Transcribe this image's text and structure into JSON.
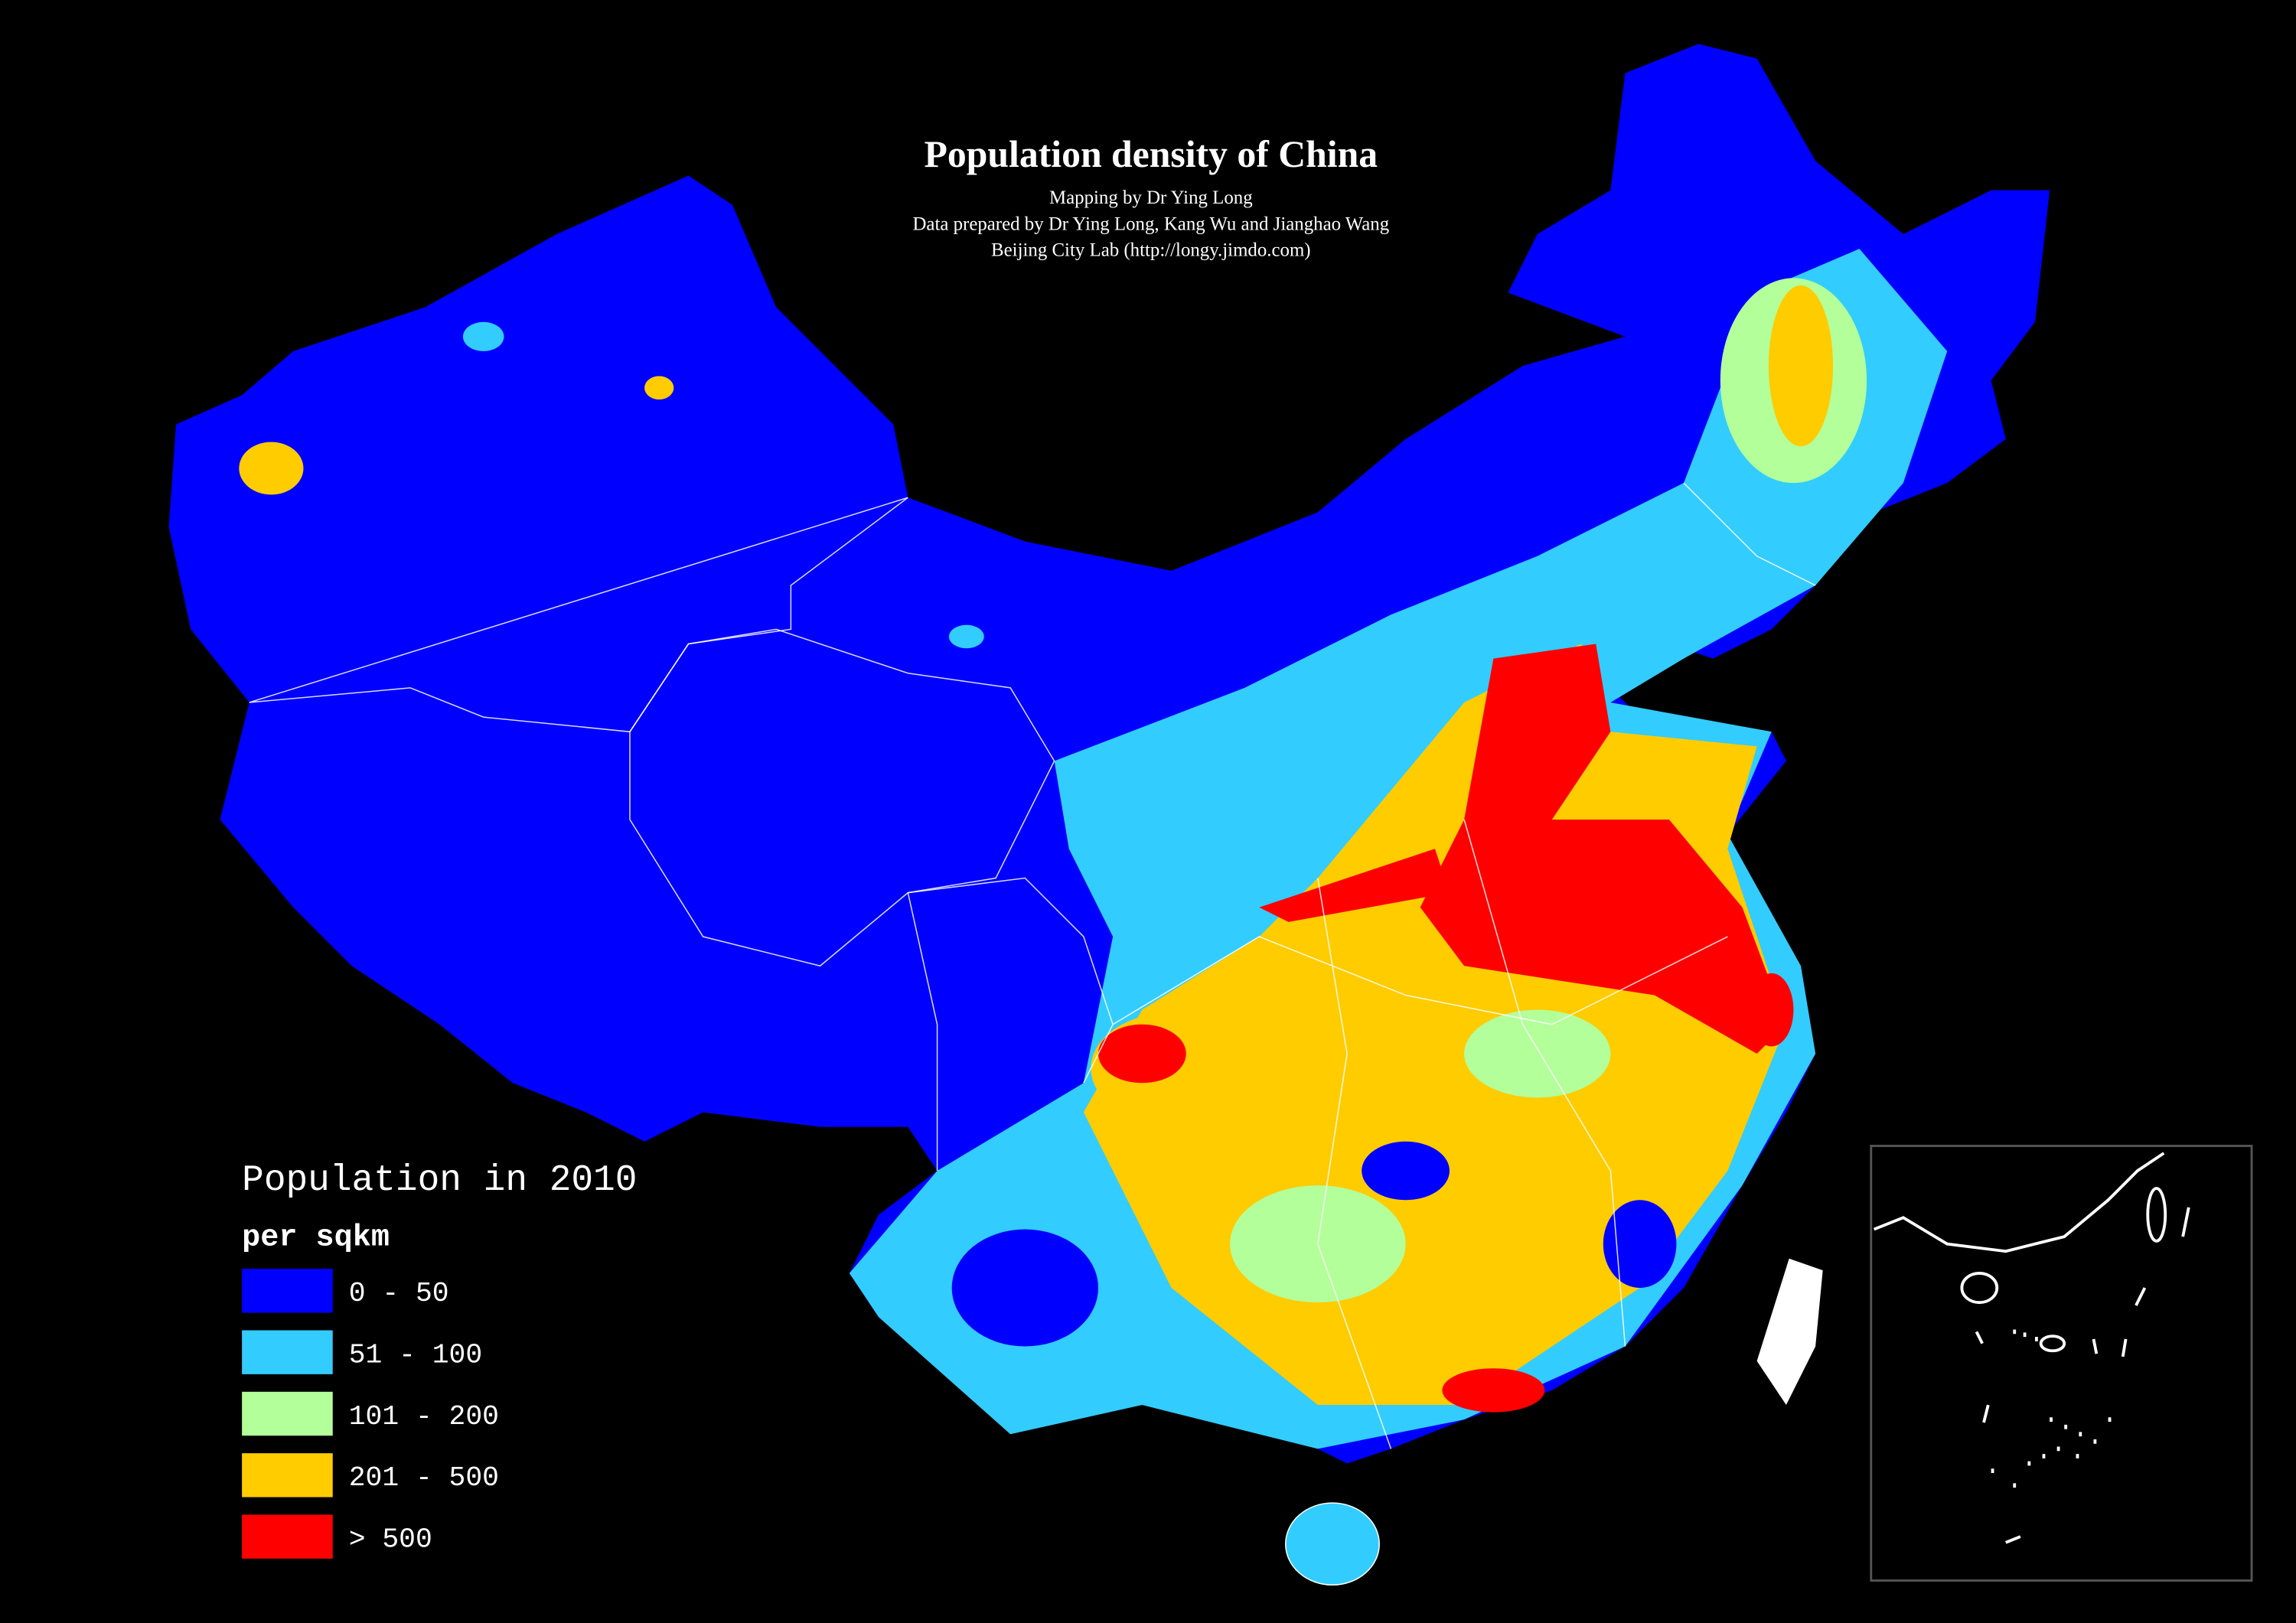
{
  "header": {
    "title": "Population density of China",
    "credits": [
      "Mapping by Dr Ying Long",
      "Data prepared by Dr Ying Long, Kang Wu and Jianghao Wang",
      "Beijing City Lab (http://longy.jimdo.com)"
    ]
  },
  "legend": {
    "title": "Population in 2010",
    "unit": "per sqkm",
    "items": [
      {
        "label": "0 - 50",
        "color": "#0000ff"
      },
      {
        "label": "51 - 100",
        "color": "#33ccff"
      },
      {
        "label": "101 - 200",
        "color": "#b3ff99"
      },
      {
        "label": "201 - 500",
        "color": "#ffcc00"
      },
      {
        "label": "> 500",
        "color": "#ff0000"
      }
    ]
  }
}
